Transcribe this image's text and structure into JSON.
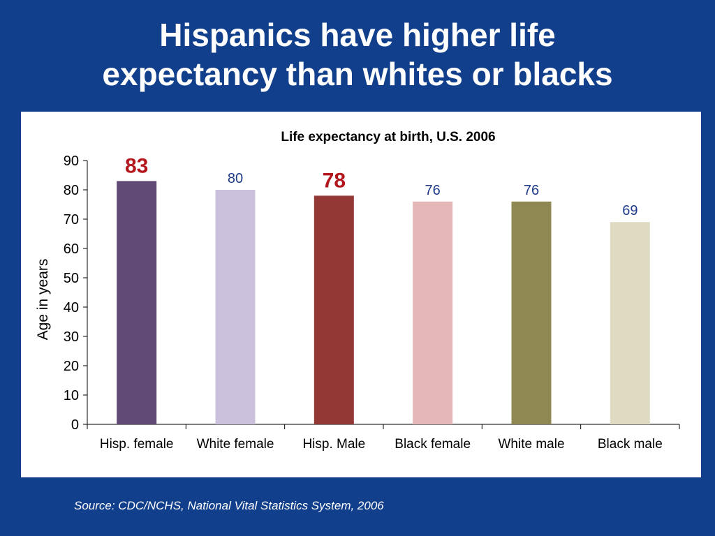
{
  "slide": {
    "title_line1": "Hispanics have higher life",
    "title_line2": "expectancy than whites or blacks",
    "source": "Source: CDC/NCHS, National Vital Statistics System, 2006"
  },
  "chart_data": {
    "type": "bar",
    "title": "Life expectancy at birth, U.S. 2006",
    "xlabel": "",
    "ylabel": "Age in years",
    "ylim": [
      0,
      90
    ],
    "yticks": [
      0,
      10,
      20,
      30,
      40,
      50,
      60,
      70,
      80,
      90
    ],
    "grid": false,
    "legend": "none",
    "categories": [
      "Hisp. female",
      "White female",
      "Hisp. Male",
      "Black female",
      "White male",
      "Black male"
    ],
    "values": [
      83,
      80,
      78,
      76,
      76,
      69
    ],
    "bar_colors": [
      "#614a76",
      "#cbc1dd",
      "#943836",
      "#e6b7b8",
      "#8f8853",
      "#dfdac2"
    ],
    "label_colors": [
      "#b3161d",
      "#1f3a8a",
      "#b3161d",
      "#1f3a8a",
      "#1f3a8a",
      "#1f3a8a"
    ],
    "label_emphasis": [
      true,
      false,
      true,
      false,
      false,
      false
    ]
  }
}
